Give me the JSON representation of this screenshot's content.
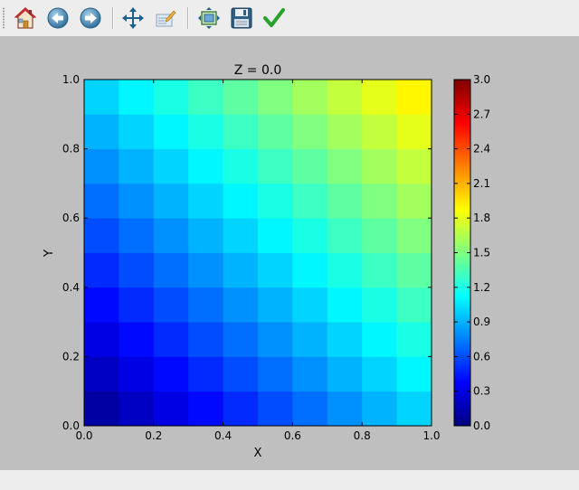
{
  "toolbar": {
    "items": [
      {
        "icon": "home-icon"
      },
      {
        "icon": "back-arrow-icon"
      },
      {
        "icon": "forward-arrow-icon"
      },
      {
        "icon": "pan-icon"
      },
      {
        "icon": "configure-subplots-icon"
      },
      {
        "icon": "zoom-to-rect-icon"
      },
      {
        "icon": "save-icon"
      },
      {
        "icon": "check-icon"
      }
    ]
  },
  "colors": {
    "toolbar_bg": "#ededed",
    "figure_bg": "#bfbfbf"
  },
  "chart_data": {
    "type": "heatmap",
    "title": "Z = 0.0",
    "xlabel": "X",
    "ylabel": "Y",
    "xlim": [
      0.0,
      1.0
    ],
    "ylim": [
      0.0,
      1.0
    ],
    "xticks": [
      "0.0",
      "0.2",
      "0.4",
      "0.6",
      "0.8",
      "1.0"
    ],
    "yticks": [
      "0.0",
      "0.2",
      "0.4",
      "0.6",
      "0.8",
      "1.0"
    ],
    "grid": false,
    "colormap": "jet",
    "colorbar": {
      "min": 0.0,
      "max": 3.0,
      "ticks": [
        "0.0",
        "0.3",
        "0.6",
        "0.9",
        "1.2",
        "1.5",
        "1.8",
        "2.1",
        "2.4",
        "2.7",
        "3.0"
      ]
    },
    "cells_x": 10,
    "cells_y": 10,
    "x_centers": [
      0.05,
      0.15,
      0.25,
      0.35,
      0.45,
      0.55,
      0.65,
      0.75,
      0.85,
      0.95
    ],
    "y_centers": [
      0.05,
      0.15,
      0.25,
      0.35,
      0.45,
      0.55,
      0.65,
      0.75,
      0.85,
      0.95
    ],
    "values_by_row_bottom_to_top": [
      [
        0.1,
        0.2,
        0.3,
        0.4,
        0.5,
        0.6,
        0.7,
        0.8,
        0.9,
        1.0
      ],
      [
        0.2,
        0.3,
        0.4,
        0.5,
        0.6,
        0.7,
        0.8,
        0.9,
        1.0,
        1.1
      ],
      [
        0.3,
        0.4,
        0.5,
        0.6,
        0.7,
        0.8,
        0.9,
        1.0,
        1.1,
        1.2
      ],
      [
        0.4,
        0.5,
        0.6,
        0.7,
        0.8,
        0.9,
        1.0,
        1.1,
        1.2,
        1.3
      ],
      [
        0.5,
        0.6,
        0.7,
        0.8,
        0.9,
        1.0,
        1.1,
        1.2,
        1.3,
        1.4
      ],
      [
        0.6,
        0.7,
        0.8,
        0.9,
        1.0,
        1.1,
        1.2,
        1.3,
        1.4,
        1.5
      ],
      [
        0.7,
        0.8,
        0.9,
        1.0,
        1.1,
        1.2,
        1.3,
        1.4,
        1.5,
        1.6
      ],
      [
        0.8,
        0.9,
        1.0,
        1.1,
        1.2,
        1.3,
        1.4,
        1.5,
        1.6,
        1.7
      ],
      [
        0.9,
        1.0,
        1.1,
        1.2,
        1.3,
        1.4,
        1.5,
        1.6,
        1.7,
        1.8
      ],
      [
        1.0,
        1.1,
        1.2,
        1.3,
        1.4,
        1.5,
        1.6,
        1.7,
        1.8,
        1.9
      ]
    ]
  }
}
